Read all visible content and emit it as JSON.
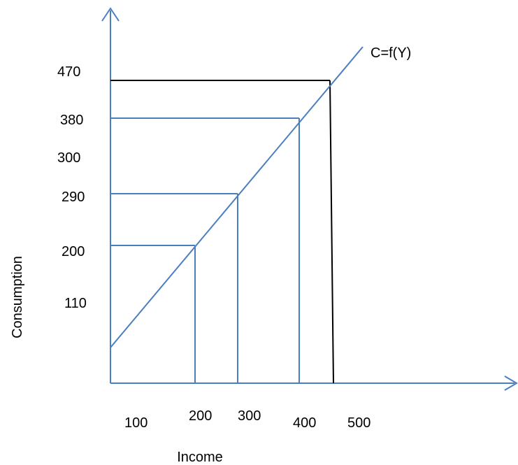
{
  "chart_data": {
    "type": "line",
    "xlabel": "Income",
    "ylabel": "Consumption",
    "x_ticks": [
      "100",
      "200",
      "300",
      "400",
      "500"
    ],
    "y_ticks": [
      "110",
      "200",
      "290",
      "300",
      "380",
      "470"
    ],
    "series": [
      {
        "name": "C=f(Y)",
        "x": [
          100,
          200,
          300,
          400,
          500
        ],
        "y": [
          20,
          200,
          290,
          380,
          470
        ]
      }
    ],
    "guides": [
      {
        "x": 200,
        "y": 200,
        "color": "#4a7ec0"
      },
      {
        "x": 300,
        "y": 290,
        "color": "#4a7ec0"
      },
      {
        "x": 400,
        "y": 380,
        "color": "#4a7ec0"
      },
      {
        "x": 450,
        "y": 470,
        "color": "#000000"
      }
    ],
    "grid": false,
    "colors": {
      "axis": "#4a7ec0",
      "line": "#4a7ec0",
      "highlight": "#000000",
      "text": "#000000"
    }
  }
}
